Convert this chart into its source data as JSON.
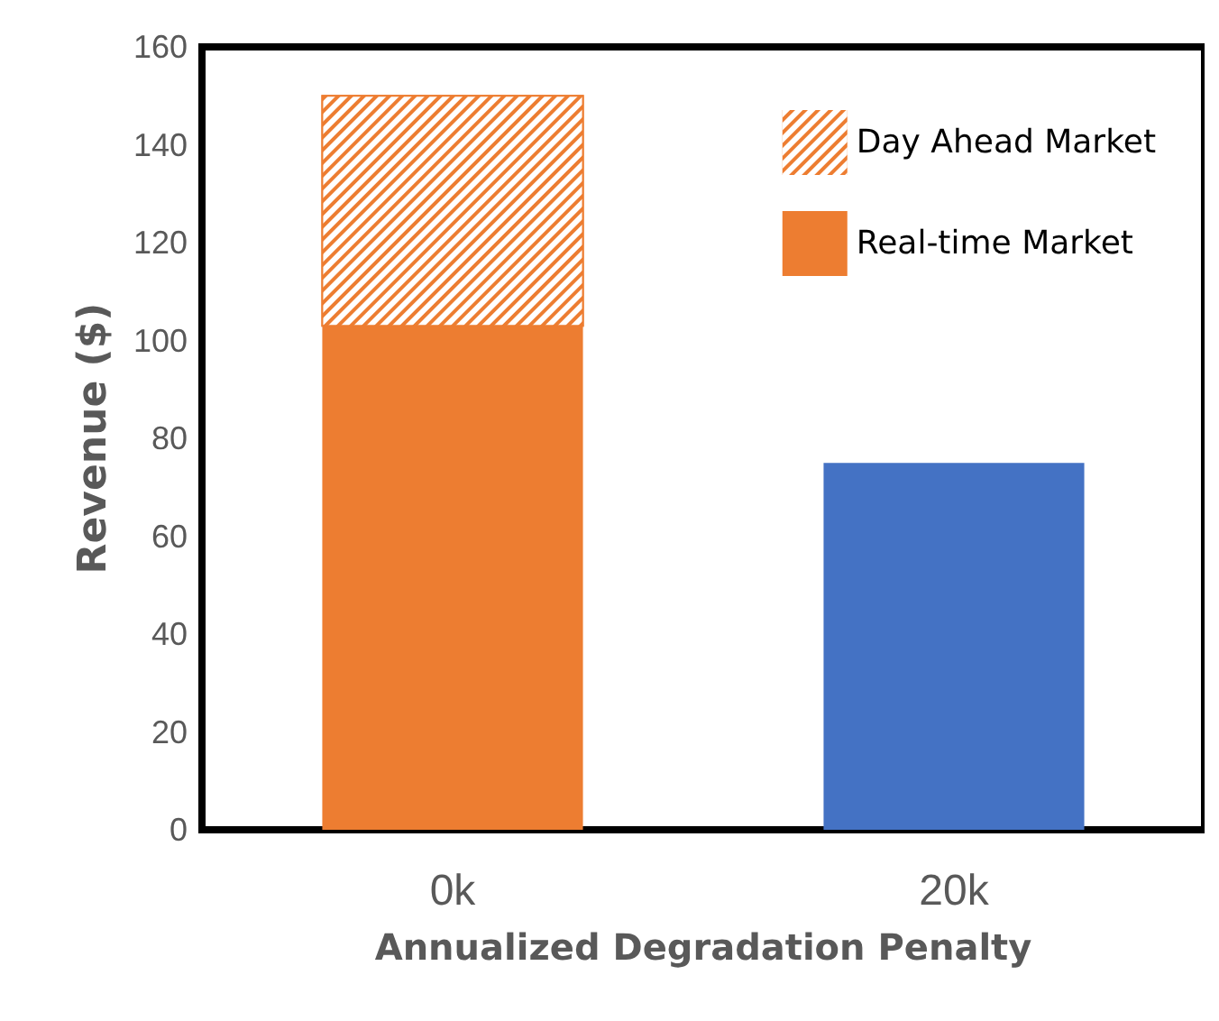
{
  "chart_data": {
    "type": "bar",
    "stacked": true,
    "xlabel": "Annualized Degradation Penalty",
    "ylabel": "Revenue ($)",
    "categories": [
      "0k",
      "20k"
    ],
    "series": [
      {
        "name": "Real-time Market",
        "color": "#ed7d31",
        "colors": [
          "#ed7d31",
          "#4472c4"
        ],
        "values": [
          103,
          75
        ]
      },
      {
        "name": "Day Ahead Market",
        "color": "#ed7d31",
        "colors": [
          "#ed7d31",
          null
        ],
        "values": [
          47,
          null
        ]
      }
    ],
    "ylim": [
      0,
      160
    ],
    "yticks": [
      0,
      20,
      40,
      60,
      80,
      100,
      120,
      140,
      160
    ],
    "grid": false,
    "legend": "top right"
  }
}
